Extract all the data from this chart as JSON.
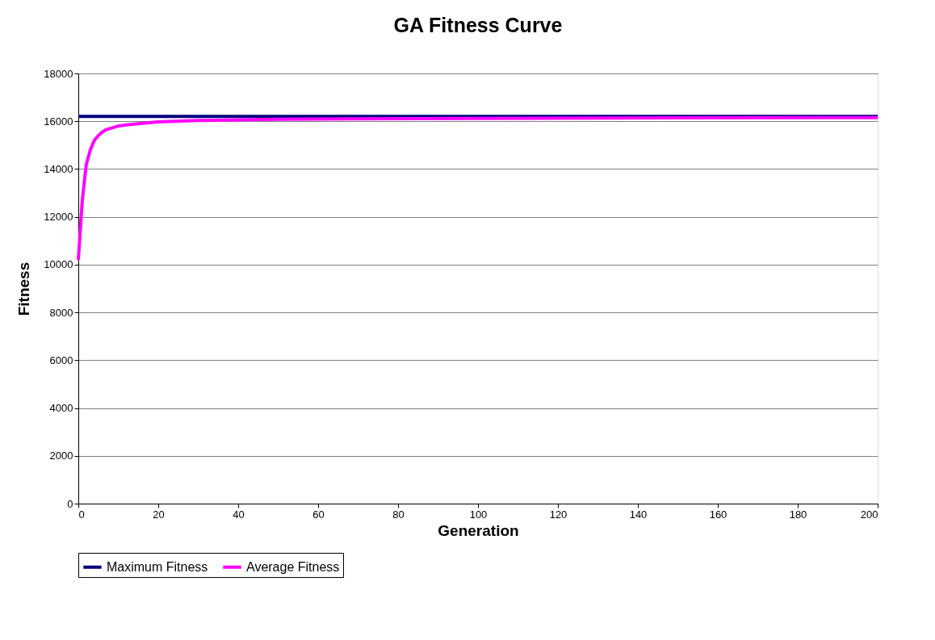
{
  "chart_data": {
    "type": "line",
    "title": "GA Fitness Curve",
    "xlabel": "Generation",
    "ylabel": "Fitness",
    "series": [
      {
        "name": "Maximum Fitness",
        "color": "#000080",
        "x": [
          0,
          200
        ],
        "values": [
          16200,
          16200
        ]
      },
      {
        "name": "Average Fitness",
        "color": "#ff00ff",
        "x": [
          0,
          1,
          2,
          3,
          4,
          5,
          6,
          7,
          8,
          10,
          12,
          15,
          20,
          30,
          40,
          50,
          70,
          100,
          150,
          200
        ],
        "values": [
          10200,
          12700,
          14200,
          14800,
          15200,
          15400,
          15550,
          15650,
          15700,
          15800,
          15850,
          15900,
          15970,
          16030,
          16060,
          16080,
          16100,
          16120,
          16140,
          16150
        ]
      }
    ],
    "xlim": [
      0,
      200
    ],
    "xticks": [
      0,
      20,
      40,
      60,
      80,
      100,
      120,
      140,
      160,
      180,
      200
    ],
    "ylim": [
      0,
      18000
    ],
    "yticks": [
      0,
      2000,
      4000,
      6000,
      8000,
      10000,
      12000,
      14000,
      16000,
      18000
    ],
    "grid": "y",
    "legend": "bottom",
    "marker": "none",
    "line_style": "solid"
  }
}
